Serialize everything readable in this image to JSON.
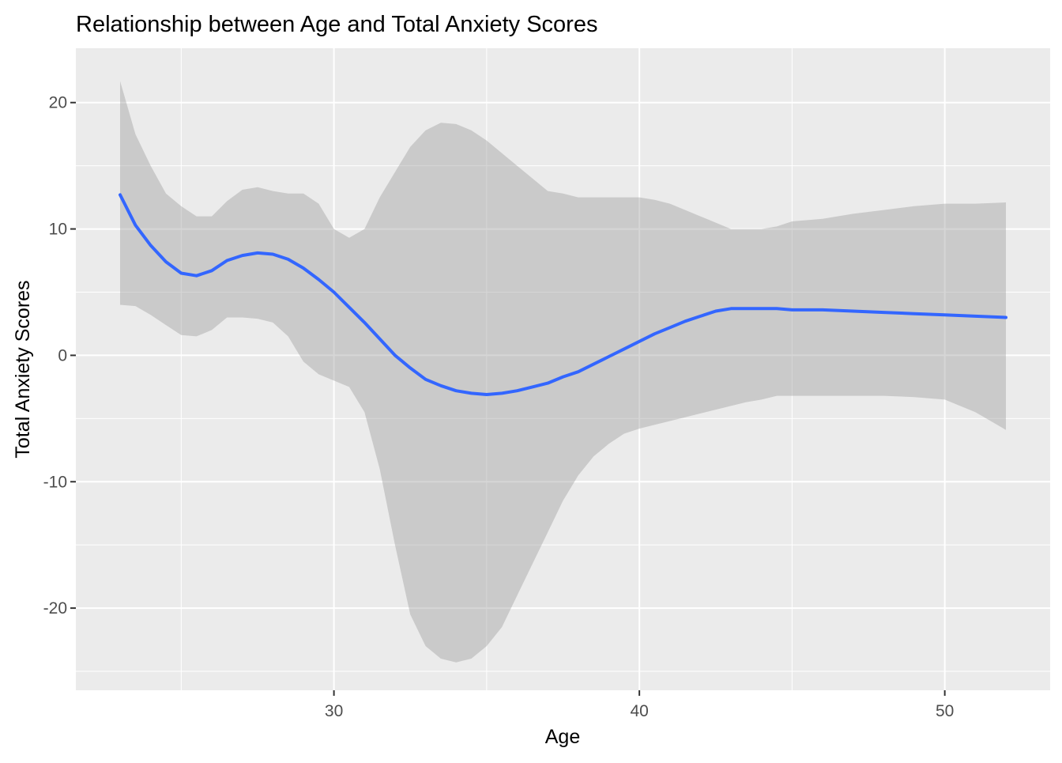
{
  "chart_data": {
    "type": "line",
    "title": "Relationship between Age and Total Anxiety Scores",
    "xlabel": "Age",
    "ylabel": "Total Anxiety Scores",
    "xlim": [
      21.55,
      53.45
    ],
    "ylim": [
      -26.5,
      24.3
    ],
    "x_ticks": [
      30,
      40,
      50
    ],
    "y_ticks": [
      -20,
      -10,
      0,
      10,
      20
    ],
    "x_minor_ticks": [
      25,
      35,
      45
    ],
    "y_minor_ticks": [
      -25,
      -15,
      -5,
      5,
      15
    ],
    "grid": true,
    "colors": {
      "panel_background": "#EBEBEB",
      "grid": "#FFFFFF",
      "line": "#3366FF",
      "ribbon": "#999999",
      "ribbon_opacity": 0.4,
      "tick_label": "#4D4D4D",
      "title": "#000000"
    },
    "series": [
      {
        "x": [
          23,
          23.5,
          24,
          24.5,
          25,
          25.5,
          26,
          26.5,
          27,
          27.5,
          28,
          28.5,
          29,
          29.5,
          30,
          30.5,
          31,
          31.5,
          32,
          32.5,
          33,
          33.5,
          34,
          34.5,
          35,
          35.5,
          36,
          36.5,
          37,
          37.5,
          38,
          38.5,
          39,
          39.5,
          40,
          40.5,
          41,
          41.5,
          42,
          42.5,
          43,
          43.5,
          44,
          44.5,
          45,
          46,
          47,
          48,
          49,
          50,
          51,
          52
        ],
        "y": [
          12.7,
          10.3,
          8.7,
          7.4,
          6.5,
          6.3,
          6.7,
          7.5,
          7.9,
          8.1,
          8.0,
          7.6,
          6.9,
          6.0,
          5.0,
          3.8,
          2.6,
          1.3,
          0.0,
          -1.0,
          -1.9,
          -2.4,
          -2.8,
          -3.0,
          -3.1,
          -3.0,
          -2.8,
          -2.5,
          -2.2,
          -1.7,
          -1.3,
          -0.7,
          -0.1,
          0.5,
          1.1,
          1.7,
          2.2,
          2.7,
          3.1,
          3.5,
          3.7,
          3.7,
          3.7,
          3.7,
          3.6,
          3.6,
          3.5,
          3.4,
          3.3,
          3.2,
          3.1,
          3.0
        ],
        "ymin": [
          4.0,
          3.9,
          3.2,
          2.4,
          1.6,
          1.5,
          2.0,
          3.0,
          3.0,
          2.9,
          2.6,
          1.5,
          -0.5,
          -1.5,
          -2.0,
          -2.5,
          -4.5,
          -9.0,
          -15.0,
          -20.5,
          -23.0,
          -24.0,
          -24.3,
          -24.0,
          -23.0,
          -21.5,
          -19.0,
          -16.5,
          -14.0,
          -11.5,
          -9.5,
          -8.0,
          -7.0,
          -6.2,
          -5.8,
          -5.5,
          -5.2,
          -4.9,
          -4.6,
          -4.3,
          -4.0,
          -3.7,
          -3.5,
          -3.2,
          -3.2,
          -3.2,
          -3.2,
          -3.2,
          -3.3,
          -3.5,
          -4.5,
          -5.9
        ],
        "ymax": [
          21.7,
          17.5,
          15.0,
          12.8,
          11.8,
          11.0,
          11.0,
          12.2,
          13.1,
          13.3,
          13.0,
          12.8,
          12.8,
          12.0,
          10.0,
          9.3,
          10.0,
          12.5,
          14.5,
          16.5,
          17.8,
          18.4,
          18.3,
          17.8,
          17.0,
          16.0,
          15.0,
          14.0,
          13.0,
          12.8,
          12.5,
          12.5,
          12.5,
          12.5,
          12.5,
          12.3,
          12.0,
          11.5,
          11.0,
          10.5,
          10.0,
          10.0,
          10.0,
          10.2,
          10.6,
          10.8,
          11.2,
          11.5,
          11.8,
          12.0,
          12.0,
          12.1
        ]
      }
    ]
  }
}
